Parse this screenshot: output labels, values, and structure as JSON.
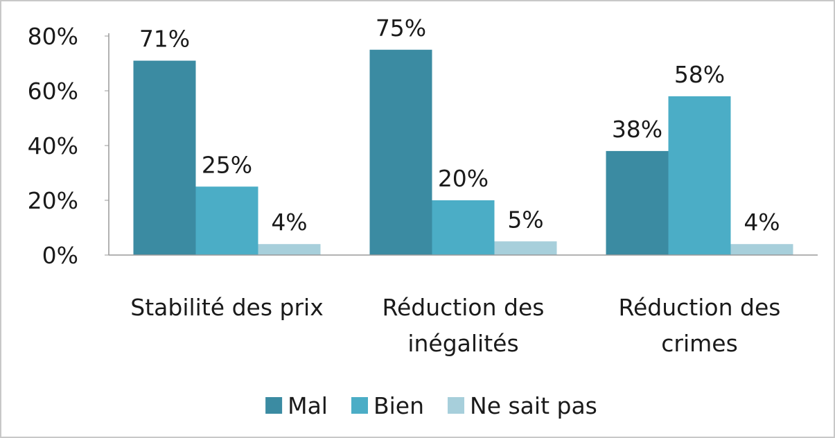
{
  "chart_data": {
    "type": "bar",
    "categories": [
      "Stabilité des prix",
      "Réduction des inégalités",
      "Réduction des crimes"
    ],
    "series": [
      {
        "name": "Mal",
        "color": "#3b8ba2",
        "values": [
          71,
          75,
          38
        ],
        "value_labels": [
          "71%",
          "75%",
          "38%"
        ]
      },
      {
        "name": "Bien",
        "color": "#4badc6",
        "values": [
          25,
          20,
          58
        ],
        "value_labels": [
          "25%",
          "20%",
          "58%"
        ]
      },
      {
        "name": "Ne sait pas",
        "color": "#a7cfdb",
        "values": [
          4,
          5,
          4
        ],
        "value_labels": [
          "4%",
          "5%",
          "4%"
        ]
      }
    ],
    "ylim": [
      0,
      80
    ],
    "yticks": [
      {
        "value": 0,
        "label": "0%"
      },
      {
        "value": 20,
        "label": "20%"
      },
      {
        "value": 40,
        "label": "40%"
      },
      {
        "value": 60,
        "label": "60%"
      },
      {
        "value": 80,
        "label": "80%"
      }
    ],
    "grid": false,
    "legend": "bottom"
  }
}
